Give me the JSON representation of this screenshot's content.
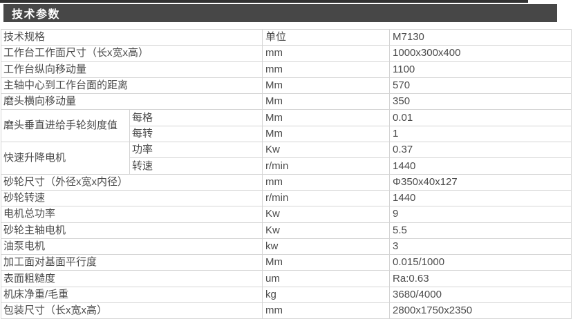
{
  "header": {
    "title": "技术参数"
  },
  "table": {
    "rows": [
      {
        "label": "技术规格",
        "unit": "单位",
        "value": "M7130"
      },
      {
        "label": "工作台工作面尺寸（长x宽x高）",
        "unit": "mm",
        "value": "1000x300x400"
      },
      {
        "label": "工作台纵向移动量",
        "unit": "mm",
        "value": "1100"
      },
      {
        "label": "主轴中心到工作台面的距离",
        "unit": "Mm",
        "value": "570"
      },
      {
        "label": "磨头横向移动量",
        "unit": "Mm",
        "value": "350"
      },
      {
        "label": "磨头垂直进给手轮刻度值",
        "rowspan": 2,
        "sublabel": "每格",
        "unit": "Mm",
        "value": "0.01"
      },
      {
        "sublabel": "每转",
        "unit": "Mm",
        "value": "1"
      },
      {
        "label": "快速升降电机",
        "rowspan": 2,
        "sublabel": "功率",
        "unit": "Kw",
        "value": "0.37"
      },
      {
        "sublabel": "转速",
        "unit": "r/min",
        "value": "1440"
      },
      {
        "label": "砂轮尺寸（外径x宽x内径）",
        "unit": "mm",
        "value": "Φ350x40x127"
      },
      {
        "label": "砂轮转速",
        "unit": "r/min",
        "value": "1440"
      },
      {
        "label": "电机总功率",
        "unit": "Kw",
        "value": "9"
      },
      {
        "label": "砂轮主轴电机",
        "unit": "Kw",
        "value": "5.5"
      },
      {
        "label": "油泵电机",
        "unit": "kw",
        "value": "3"
      },
      {
        "label": "加工面对基面平行度",
        "unit": "Mm",
        "value": "0.015/1000"
      },
      {
        "label": "表面粗糙度",
        "unit": "um",
        "value": "Ra:0.63"
      },
      {
        "label": "机床净重/毛重",
        "unit": "kg",
        "value": "3680/4000"
      },
      {
        "label": "包装尺寸（长x宽x高）",
        "unit": "mm",
        "value": "2800x1750x2350"
      }
    ]
  },
  "colors": {
    "top_line": "#323232",
    "header_bar": "#474747",
    "header_text": "#ffffff",
    "table_border": "#d4d4d4",
    "table_text": "#4b4b4b"
  }
}
